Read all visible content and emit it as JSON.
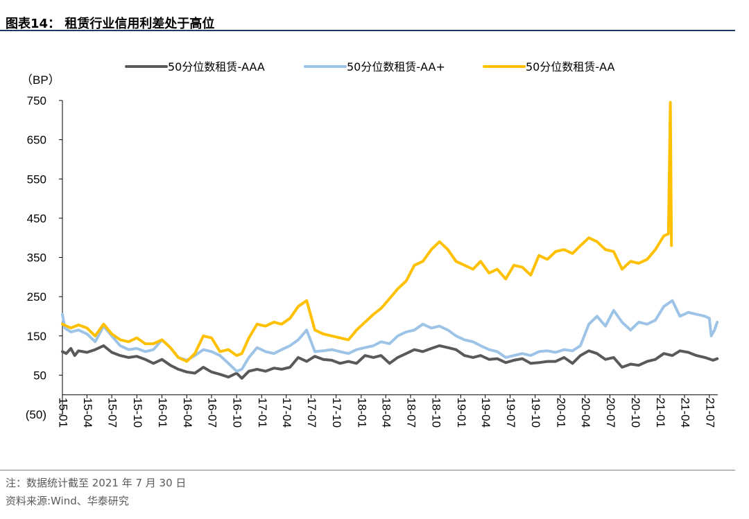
{
  "header": {
    "title": "图表14：  租赁行业信用利差处于高位"
  },
  "footer": {
    "note": "注：数据统计截至 2021 年 7 月 30 日",
    "source": "资料来源:Wind、华泰研究"
  },
  "chart_data": {
    "type": "line",
    "unit_label": "（BP）",
    "ylim": [
      -50,
      750
    ],
    "yticks": [
      750,
      650,
      550,
      450,
      350,
      250,
      150,
      50,
      -50
    ],
    "ytick_labels": [
      "750",
      "650",
      "550",
      "450",
      "350",
      "250",
      "150",
      "50",
      "(50)"
    ],
    "xlim": [
      "2015-01",
      "2021-08"
    ],
    "xtick_labels": [
      "15-01",
      "15-04",
      "15-07",
      "15-10",
      "16-01",
      "16-04",
      "16-07",
      "16-10",
      "17-01",
      "17-04",
      "17-07",
      "17-10",
      "18-01",
      "18-04",
      "18-07",
      "18-10",
      "19-01",
      "19-04",
      "19-07",
      "19-10",
      "20-01",
      "20-04",
      "20-07",
      "20-10",
      "21-01",
      "21-04",
      "21-07"
    ],
    "legend_position": "top",
    "grid": false,
    "series": [
      {
        "name": "50分位数租赁-AAA",
        "color": "#595959",
        "points": [
          [
            "2015-01-01",
            110
          ],
          [
            "2015-01-15",
            105
          ],
          [
            "2015-02-01",
            118
          ],
          [
            "2015-02-15",
            100
          ],
          [
            "2015-03-01",
            112
          ],
          [
            "2015-04-01",
            108
          ],
          [
            "2015-05-01",
            115
          ],
          [
            "2015-06-01",
            125
          ],
          [
            "2015-07-01",
            108
          ],
          [
            "2015-08-01",
            100
          ],
          [
            "2015-09-01",
            95
          ],
          [
            "2015-10-01",
            98
          ],
          [
            "2015-11-01",
            90
          ],
          [
            "2015-12-01",
            80
          ],
          [
            "2016-01-01",
            90
          ],
          [
            "2016-02-01",
            75
          ],
          [
            "2016-03-01",
            65
          ],
          [
            "2016-04-01",
            58
          ],
          [
            "2016-05-01",
            55
          ],
          [
            "2016-06-01",
            70
          ],
          [
            "2016-07-01",
            58
          ],
          [
            "2016-08-01",
            52
          ],
          [
            "2016-09-01",
            45
          ],
          [
            "2016-10-01",
            55
          ],
          [
            "2016-10-20",
            42
          ],
          [
            "2016-11-15",
            60
          ],
          [
            "2016-12-15",
            65
          ],
          [
            "2017-01-15",
            60
          ],
          [
            "2017-02-15",
            68
          ],
          [
            "2017-03-15",
            65
          ],
          [
            "2017-04-15",
            70
          ],
          [
            "2017-05-15",
            95
          ],
          [
            "2017-06-15",
            85
          ],
          [
            "2017-07-15",
            98
          ],
          [
            "2017-08-15",
            90
          ],
          [
            "2017-09-15",
            88
          ],
          [
            "2017-10-15",
            80
          ],
          [
            "2017-11-15",
            85
          ],
          [
            "2017-12-15",
            80
          ],
          [
            "2018-01-15",
            100
          ],
          [
            "2018-02-15",
            95
          ],
          [
            "2018-03-15",
            100
          ],
          [
            "2018-04-15",
            80
          ],
          [
            "2018-05-15",
            95
          ],
          [
            "2018-06-15",
            105
          ],
          [
            "2018-07-15",
            115
          ],
          [
            "2018-08-15",
            110
          ],
          [
            "2018-09-15",
            118
          ],
          [
            "2018-10-15",
            125
          ],
          [
            "2018-11-15",
            120
          ],
          [
            "2018-12-15",
            115
          ],
          [
            "2019-01-15",
            100
          ],
          [
            "2019-02-15",
            95
          ],
          [
            "2019-03-15",
            100
          ],
          [
            "2019-04-15",
            90
          ],
          [
            "2019-05-15",
            92
          ],
          [
            "2019-06-15",
            82
          ],
          [
            "2019-07-15",
            88
          ],
          [
            "2019-08-15",
            92
          ],
          [
            "2019-09-15",
            80
          ],
          [
            "2019-10-15",
            82
          ],
          [
            "2019-11-15",
            85
          ],
          [
            "2019-12-15",
            85
          ],
          [
            "2020-01-15",
            95
          ],
          [
            "2020-02-15",
            80
          ],
          [
            "2020-03-15",
            100
          ],
          [
            "2020-04-15",
            112
          ],
          [
            "2020-05-15",
            105
          ],
          [
            "2020-06-15",
            90
          ],
          [
            "2020-07-15",
            95
          ],
          [
            "2020-08-15",
            70
          ],
          [
            "2020-09-15",
            78
          ],
          [
            "2020-10-15",
            75
          ],
          [
            "2020-11-15",
            85
          ],
          [
            "2020-12-15",
            90
          ],
          [
            "2021-01-15",
            105
          ],
          [
            "2021-02-15",
            100
          ],
          [
            "2021-03-15",
            112
          ],
          [
            "2021-04-15",
            108
          ],
          [
            "2021-05-15",
            100
          ],
          [
            "2021-06-15",
            95
          ],
          [
            "2021-07-15",
            88
          ],
          [
            "2021-07-30",
            92
          ]
        ]
      },
      {
        "name": "50分位数租赁-AA+",
        "color": "#9dc3e6",
        "points": [
          [
            "2015-01-01",
            205
          ],
          [
            "2015-01-10",
            170
          ],
          [
            "2015-02-01",
            160
          ],
          [
            "2015-03-01",
            165
          ],
          [
            "2015-04-01",
            155
          ],
          [
            "2015-05-01",
            135
          ],
          [
            "2015-06-01",
            175
          ],
          [
            "2015-07-01",
            150
          ],
          [
            "2015-08-01",
            125
          ],
          [
            "2015-09-01",
            115
          ],
          [
            "2015-10-01",
            118
          ],
          [
            "2015-11-01",
            110
          ],
          [
            "2015-12-01",
            115
          ],
          [
            "2016-01-01",
            140
          ],
          [
            "2016-02-01",
            120
          ],
          [
            "2016-03-01",
            95
          ],
          [
            "2016-04-01",
            88
          ],
          [
            "2016-05-01",
            100
          ],
          [
            "2016-06-01",
            115
          ],
          [
            "2016-07-01",
            110
          ],
          [
            "2016-08-01",
            100
          ],
          [
            "2016-09-01",
            80
          ],
          [
            "2016-10-01",
            60
          ],
          [
            "2016-10-20",
            65
          ],
          [
            "2016-11-15",
            95
          ],
          [
            "2016-12-15",
            120
          ],
          [
            "2017-01-15",
            110
          ],
          [
            "2017-02-15",
            105
          ],
          [
            "2017-03-15",
            115
          ],
          [
            "2017-04-15",
            125
          ],
          [
            "2017-05-15",
            140
          ],
          [
            "2017-06-15",
            165
          ],
          [
            "2017-07-15",
            110
          ],
          [
            "2017-08-15",
            112
          ],
          [
            "2017-09-15",
            115
          ],
          [
            "2017-10-15",
            110
          ],
          [
            "2017-11-15",
            105
          ],
          [
            "2017-12-15",
            115
          ],
          [
            "2018-01-15",
            120
          ],
          [
            "2018-02-15",
            125
          ],
          [
            "2018-03-15",
            135
          ],
          [
            "2018-04-15",
            130
          ],
          [
            "2018-05-15",
            150
          ],
          [
            "2018-06-15",
            160
          ],
          [
            "2018-07-15",
            165
          ],
          [
            "2018-08-15",
            180
          ],
          [
            "2018-09-15",
            170
          ],
          [
            "2018-10-15",
            175
          ],
          [
            "2018-11-15",
            165
          ],
          [
            "2018-12-15",
            150
          ],
          [
            "2019-01-15",
            140
          ],
          [
            "2019-02-15",
            135
          ],
          [
            "2019-03-15",
            125
          ],
          [
            "2019-04-15",
            115
          ],
          [
            "2019-05-15",
            110
          ],
          [
            "2019-06-15",
            95
          ],
          [
            "2019-07-15",
            100
          ],
          [
            "2019-08-15",
            105
          ],
          [
            "2019-09-15",
            100
          ],
          [
            "2019-10-15",
            110
          ],
          [
            "2019-11-15",
            112
          ],
          [
            "2019-12-15",
            108
          ],
          [
            "2020-01-15",
            115
          ],
          [
            "2020-02-15",
            112
          ],
          [
            "2020-03-15",
            125
          ],
          [
            "2020-04-15",
            180
          ],
          [
            "2020-05-15",
            200
          ],
          [
            "2020-06-15",
            175
          ],
          [
            "2020-07-15",
            215
          ],
          [
            "2020-08-15",
            185
          ],
          [
            "2020-09-15",
            165
          ],
          [
            "2020-10-15",
            185
          ],
          [
            "2020-11-15",
            180
          ],
          [
            "2020-12-15",
            190
          ],
          [
            "2021-01-15",
            225
          ],
          [
            "2021-02-15",
            240
          ],
          [
            "2021-03-15",
            200
          ],
          [
            "2021-04-15",
            210
          ],
          [
            "2021-05-15",
            205
          ],
          [
            "2021-06-15",
            200
          ],
          [
            "2021-07-01",
            195
          ],
          [
            "2021-07-08",
            150
          ],
          [
            "2021-07-20",
            165
          ],
          [
            "2021-07-30",
            185
          ]
        ]
      },
      {
        "name": "50分位数租赁-AA",
        "color": "#ffc000",
        "points": [
          [
            "2015-01-01",
            180
          ],
          [
            "2015-02-01",
            170
          ],
          [
            "2015-03-01",
            178
          ],
          [
            "2015-04-01",
            170
          ],
          [
            "2015-05-01",
            150
          ],
          [
            "2015-06-01",
            180
          ],
          [
            "2015-07-01",
            155
          ],
          [
            "2015-08-01",
            140
          ],
          [
            "2015-09-01",
            135
          ],
          [
            "2015-10-01",
            145
          ],
          [
            "2015-11-01",
            130
          ],
          [
            "2015-12-01",
            130
          ],
          [
            "2016-01-01",
            140
          ],
          [
            "2016-02-01",
            120
          ],
          [
            "2016-03-01",
            95
          ],
          [
            "2016-04-01",
            85
          ],
          [
            "2016-05-01",
            105
          ],
          [
            "2016-06-01",
            150
          ],
          [
            "2016-07-01",
            145
          ],
          [
            "2016-08-01",
            110
          ],
          [
            "2016-09-01",
            115
          ],
          [
            "2016-10-01",
            100
          ],
          [
            "2016-10-20",
            105
          ],
          [
            "2016-11-15",
            145
          ],
          [
            "2016-12-15",
            180
          ],
          [
            "2017-01-15",
            175
          ],
          [
            "2017-02-15",
            185
          ],
          [
            "2017-03-15",
            180
          ],
          [
            "2017-04-15",
            195
          ],
          [
            "2017-05-15",
            225
          ],
          [
            "2017-06-15",
            240
          ],
          [
            "2017-07-15",
            165
          ],
          [
            "2017-08-15",
            155
          ],
          [
            "2017-09-15",
            150
          ],
          [
            "2017-10-15",
            145
          ],
          [
            "2017-11-15",
            140
          ],
          [
            "2017-12-15",
            165
          ],
          [
            "2018-01-15",
            185
          ],
          [
            "2018-02-15",
            205
          ],
          [
            "2018-03-15",
            220
          ],
          [
            "2018-04-15",
            245
          ],
          [
            "2018-05-15",
            270
          ],
          [
            "2018-06-15",
            290
          ],
          [
            "2018-07-15",
            330
          ],
          [
            "2018-08-15",
            340
          ],
          [
            "2018-09-15",
            370
          ],
          [
            "2018-10-15",
            390
          ],
          [
            "2018-11-15",
            370
          ],
          [
            "2018-12-15",
            340
          ],
          [
            "2019-01-15",
            330
          ],
          [
            "2019-02-15",
            320
          ],
          [
            "2019-03-15",
            340
          ],
          [
            "2019-04-15",
            310
          ],
          [
            "2019-05-15",
            320
          ],
          [
            "2019-06-15",
            295
          ],
          [
            "2019-07-15",
            330
          ],
          [
            "2019-08-15",
            325
          ],
          [
            "2019-09-15",
            305
          ],
          [
            "2019-10-15",
            355
          ],
          [
            "2019-11-15",
            345
          ],
          [
            "2019-12-15",
            365
          ],
          [
            "2020-01-15",
            370
          ],
          [
            "2020-02-15",
            360
          ],
          [
            "2020-03-15",
            380
          ],
          [
            "2020-04-15",
            400
          ],
          [
            "2020-05-15",
            390
          ],
          [
            "2020-06-15",
            370
          ],
          [
            "2020-07-15",
            365
          ],
          [
            "2020-08-15",
            320
          ],
          [
            "2020-09-15",
            340
          ],
          [
            "2020-10-15",
            335
          ],
          [
            "2020-11-15",
            345
          ],
          [
            "2020-12-15",
            370
          ],
          [
            "2021-01-15",
            405
          ],
          [
            "2021-02-01",
            410
          ],
          [
            "2021-02-08",
            745
          ],
          [
            "2021-02-12",
            380
          ]
        ]
      }
    ]
  }
}
